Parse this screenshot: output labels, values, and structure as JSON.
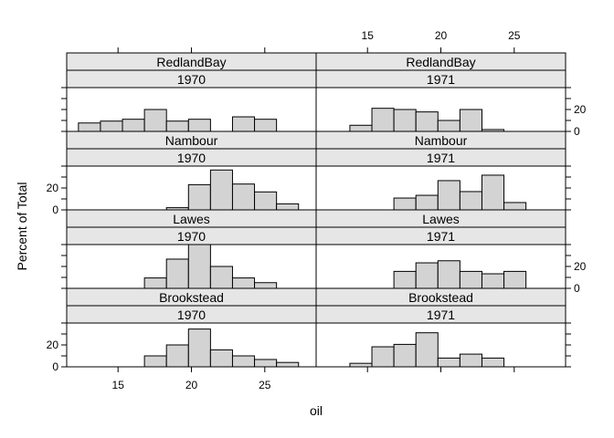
{
  "chart_data": {
    "type": "histogram-lattice",
    "xlabel": "oil",
    "ylabel": "Percent of Total",
    "xlim": [
      11.5,
      28.5
    ],
    "ylim": [
      0,
      40
    ],
    "x_ticks": [
      15,
      20,
      25
    ],
    "y_ticks": [
      0,
      20
    ],
    "bin_edges": [
      12.3,
      13.8,
      15.3,
      16.8,
      18.3,
      19.8,
      21.3,
      22.8,
      24.3,
      25.8,
      27.3
    ],
    "panels": [
      {
        "location": "RedlandBay",
        "year": "1970",
        "values": [
          7.7,
          9.4,
          11.1,
          20,
          9.4,
          11.1,
          0,
          13.3,
          11.1,
          0
        ]
      },
      {
        "location": "RedlandBay",
        "year": "1971",
        "values": [
          0,
          5.6,
          21.1,
          20,
          17.8,
          10,
          20,
          1.7,
          0,
          0
        ]
      },
      {
        "location": "Nambour",
        "year": "1970",
        "values": [
          0,
          0,
          0,
          0,
          2,
          23,
          36.4,
          23.6,
          16.4,
          5.5
        ]
      },
      {
        "location": "Nambour",
        "year": "1971",
        "values": [
          0,
          0,
          0,
          10.8,
          13.3,
          26.7,
          16.7,
          31.7,
          6.7,
          0
        ]
      },
      {
        "location": "Lawes",
        "year": "1970",
        "values": [
          0,
          0,
          0,
          9.5,
          26.7,
          40,
          20,
          9.5,
          5.2,
          0
        ]
      },
      {
        "location": "Lawes",
        "year": "1971",
        "values": [
          0,
          0,
          0,
          15.5,
          23.3,
          25.2,
          15.5,
          13.3,
          15.5,
          0
        ]
      },
      {
        "location": "Brookstead",
        "year": "1970",
        "values": [
          0,
          0,
          0,
          10,
          20,
          34.5,
          15.5,
          10,
          6.7,
          4
        ]
      },
      {
        "location": "Brookstead",
        "year": "1971",
        "values": [
          0,
          3.2,
          18.3,
          20.5,
          31.1,
          8,
          11.6,
          8,
          0,
          0
        ]
      }
    ]
  }
}
